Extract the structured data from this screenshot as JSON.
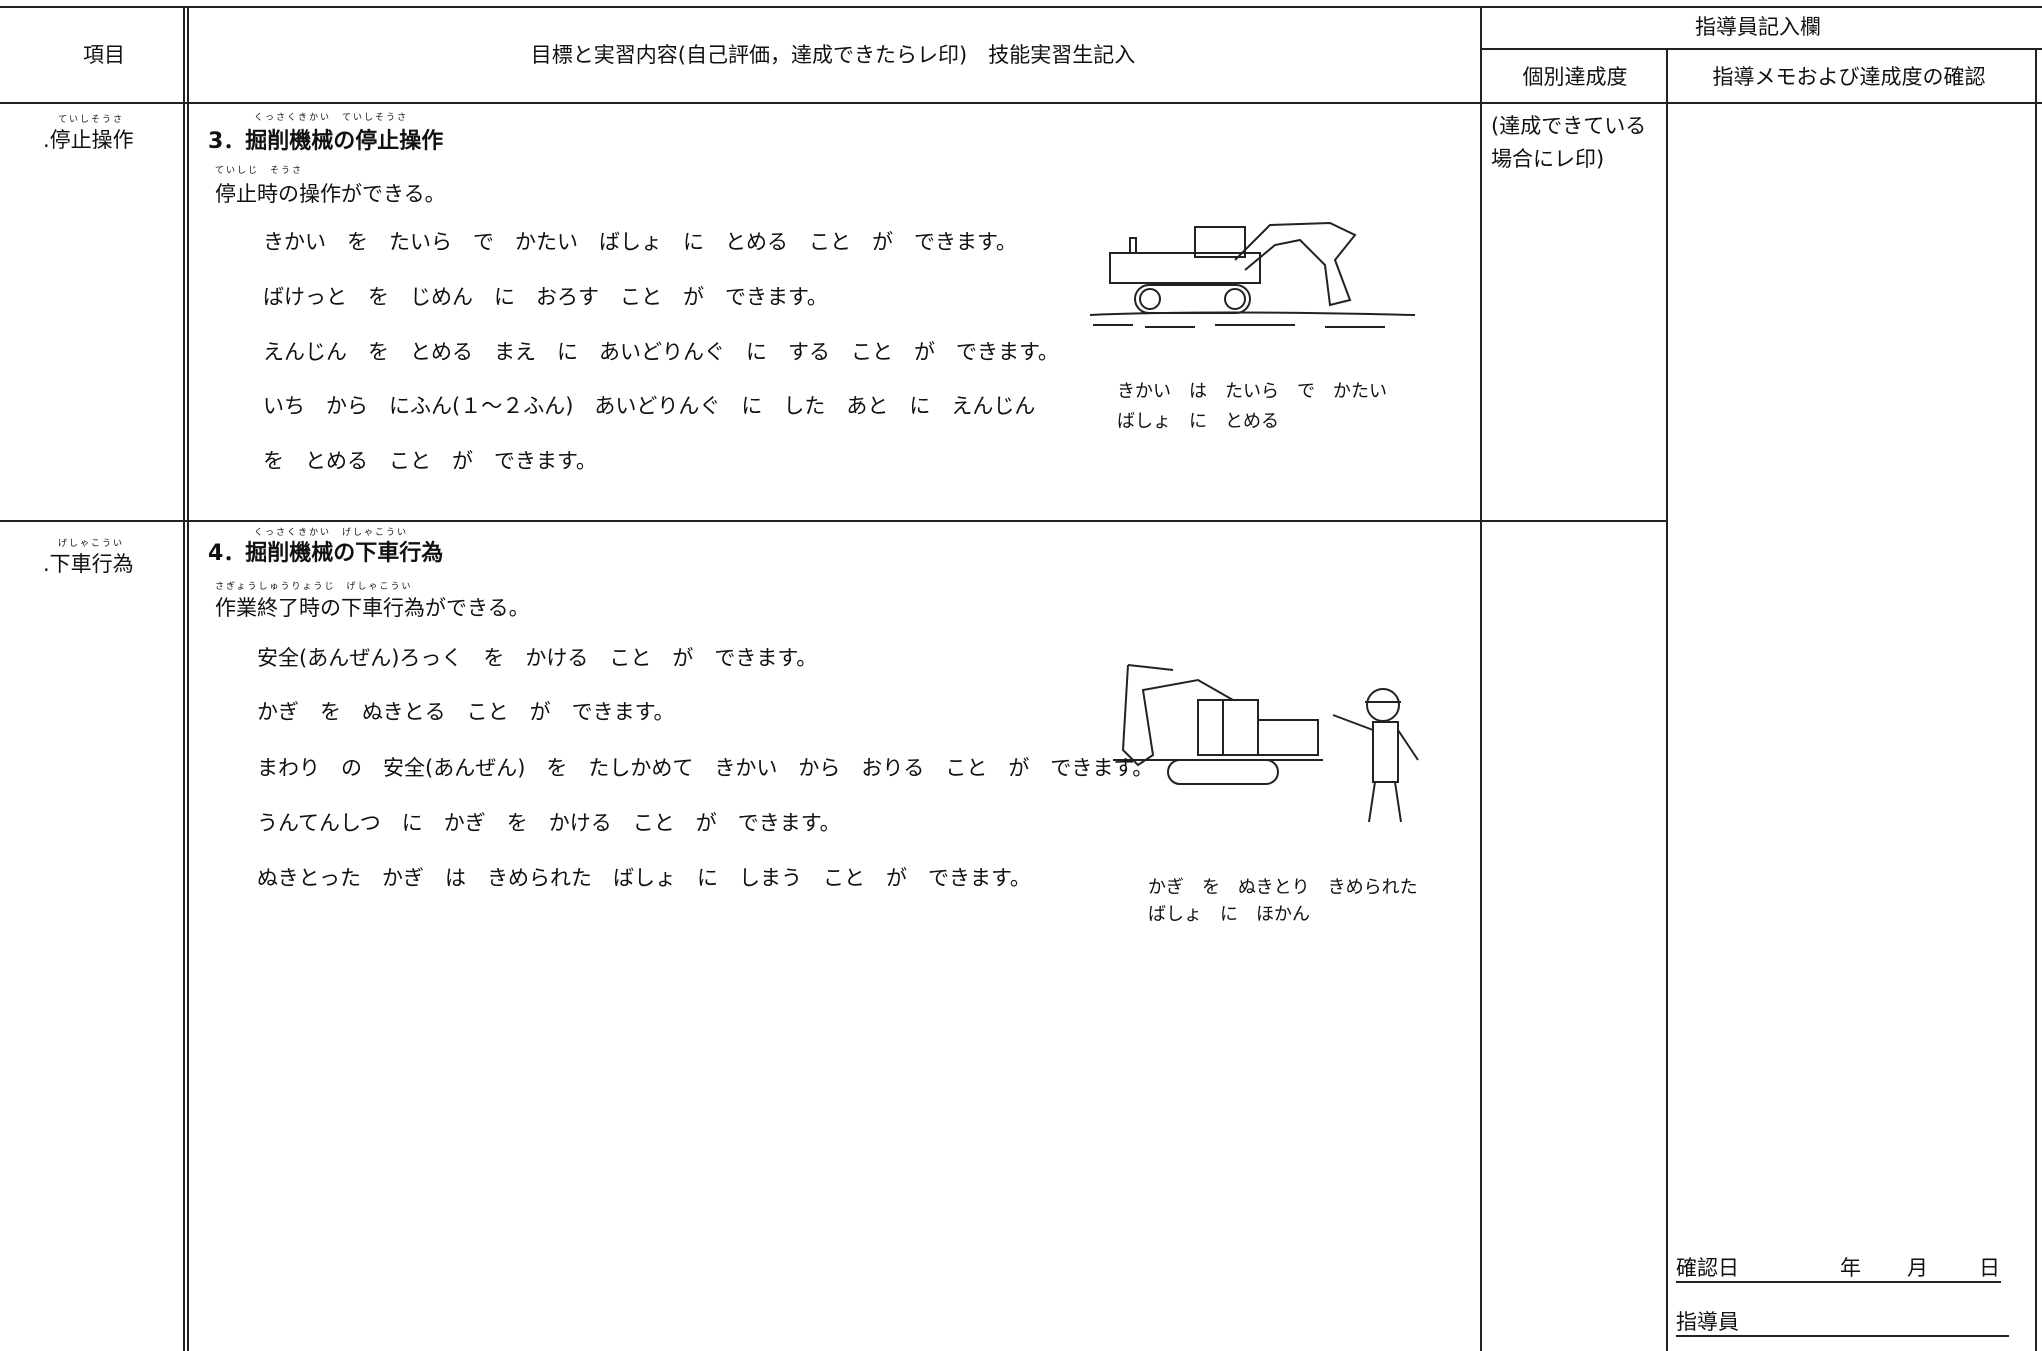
{
  "header": {
    "item": "項目",
    "content": "目標と実習内容(自己評価，達成できたらレ印)　技能実習生記入",
    "instructor_section": "指導員記入欄",
    "achievement": "個別達成度",
    "memo": "指導メモおよび達成度の確認"
  },
  "sections": [
    {
      "item_ruby": "ていしそうさ",
      "item": ".停止操作",
      "heading_ruby": "くっさくきかい　ていしそうさ",
      "heading": "3．掘削機械の停止操作",
      "goal_ruby": "ていしじ　そうさ",
      "goal": "停止時の操作ができる。",
      "steps": [
        "きかい　を　たいら　で　かたい　ばしょ　に　とめる　こと　が　できます。",
        "ばけっと　を　じめん　に　おろす　こと　が　できます。",
        "えんじん　を　とめる　まえ　に　あいどりんぐ　に　する　こと　が　できます。",
        "いち　から　にふん(１～２ふん)　あいどりんぐ　に　した　あと　に　えんじん",
        "を　とめる　こと　が　できます。"
      ],
      "caption": [
        "きかい　は　たいら　で　かたい",
        "ばしょ　に　とめる"
      ],
      "achievement_note": [
        "(達成できている",
        "場合にレ印)"
      ]
    },
    {
      "item_ruby": "げしゃこうい",
      "item": ".下車行為",
      "heading_ruby": "くっさくきかい　げしゃこうい",
      "heading": "4．掘削機械の下車行為",
      "goal_ruby": "さぎょうしゅうりょうじ　げしゃこうい",
      "goal": "作業終了時の下車行為ができる。",
      "steps": [
        "安全(あんぜん)ろっく　を　かける　こと　が　できます。",
        "かぎ　を　ぬきとる　こと　が　できます。",
        "まわり　の　安全(あんぜん)　を　たしかめて　きかい　から　おりる　こと　が　できます。",
        "うんてんしつ　に　かぎ　を　かける　こと　が　できます。",
        "ぬきとった　かぎ　は　きめられた　ばしょ　に　しまう　こと　が　できます。"
      ],
      "caption": [
        "かぎ　を　ぬきとり　きめられた",
        "ばしょ　に　ほかん"
      ]
    }
  ],
  "footer": {
    "date_label": "確認日",
    "year": "年",
    "month": "月",
    "day": "日",
    "instructor": "指導員"
  }
}
